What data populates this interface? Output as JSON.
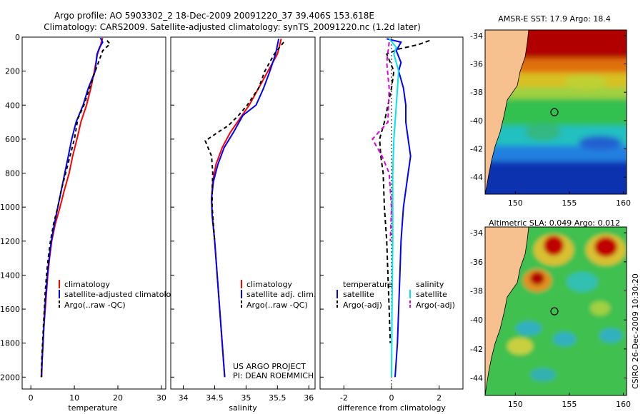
{
  "title": {
    "line1": "Argo profile: AO 5903302_2 18-Dec-2009 20091220_37 39.406S 153.618E",
    "line2": "Climatology: CARS2009. Satellite-adjusted climatology: synTS_20091220.nc (1.2d later)"
  },
  "side_label": "CSIRO 26-Dec-2009 10:30:20",
  "project": {
    "line1": "US ARGO PROJECT",
    "line2": "PI: DEAN ROEMMICH"
  },
  "colors": {
    "climatology": "#ff0000",
    "satellite": "#0000ff",
    "argo": "#000000",
    "satellite_salinity": "#00e5ee",
    "argo_salinity": "#e000e0",
    "land": "#f7c08f"
  },
  "chart_data": [
    {
      "type": "line",
      "id": "temperature",
      "xlabel": "temperature",
      "ylabel": "",
      "xlim": [
        -2,
        31
      ],
      "ylim": [
        2070,
        0
      ],
      "xticks": [
        0,
        10,
        20,
        30
      ],
      "yticks": [
        0,
        200,
        400,
        600,
        800,
        1000,
        1200,
        1400,
        1600,
        1800,
        2000
      ],
      "legend": [
        "climatology",
        "satellite-adjusted climatology",
        "Argo(..raw -QC)"
      ],
      "series": [
        {
          "name": "climatology",
          "color": "#ff0000",
          "dash": "",
          "points": [
            [
              16.5,
              5
            ],
            [
              16.0,
              50
            ],
            [
              15.3,
              100
            ],
            [
              14.6,
              200
            ],
            [
              13.8,
              300
            ],
            [
              12.8,
              400
            ],
            [
              11.5,
              500
            ],
            [
              10.6,
              600
            ],
            [
              9.6,
              700
            ],
            [
              8.8,
              800
            ],
            [
              7.7,
              900
            ],
            [
              6.7,
              1000
            ],
            [
              5.6,
              1100
            ],
            [
              4.8,
              1200
            ],
            [
              4.3,
              1300
            ],
            [
              3.9,
              1400
            ],
            [
              3.6,
              1500
            ],
            [
              3.3,
              1600
            ],
            [
              3.0,
              1700
            ],
            [
              2.8,
              1800
            ],
            [
              2.6,
              1900
            ],
            [
              2.5,
              2000
            ]
          ]
        },
        {
          "name": "satellite-adjusted climatology",
          "color": "#0000ff",
          "dash": "",
          "points": [
            [
              16.0,
              5
            ],
            [
              16.5,
              30
            ],
            [
              15.8,
              60
            ],
            [
              15.2,
              100
            ],
            [
              14.8,
              200
            ],
            [
              13.2,
              300
            ],
            [
              12.0,
              400
            ],
            [
              10.4,
              500
            ],
            [
              9.4,
              600
            ],
            [
              8.6,
              700
            ],
            [
              7.8,
              800
            ],
            [
              7.0,
              900
            ],
            [
              6.2,
              1000
            ],
            [
              5.4,
              1100
            ],
            [
              4.7,
              1200
            ],
            [
              4.2,
              1300
            ],
            [
              3.8,
              1400
            ],
            [
              3.5,
              1500
            ],
            [
              3.2,
              1600
            ],
            [
              3.0,
              1700
            ],
            [
              2.8,
              1800
            ],
            [
              2.6,
              1900
            ],
            [
              2.4,
              2000
            ]
          ]
        },
        {
          "name": "Argo(..raw -QC)",
          "color": "#000000",
          "dash": "5,4",
          "points": [
            [
              17.5,
              20
            ],
            [
              18.2,
              40
            ],
            [
              16.5,
              80
            ],
            [
              15.8,
              130
            ],
            [
              14.8,
              200
            ],
            [
              13.5,
              300
            ],
            [
              12.2,
              400
            ],
            [
              10.8,
              480
            ],
            [
              10.0,
              600
            ],
            [
              9.0,
              700
            ],
            [
              8.0,
              800
            ],
            [
              7.0,
              900
            ],
            [
              6.2,
              1000
            ],
            [
              5.2,
              1100
            ],
            [
              4.5,
              1200
            ],
            [
              4.0,
              1300
            ],
            [
              3.6,
              1400
            ],
            [
              3.3,
              1500
            ],
            [
              3.1,
              1600
            ],
            [
              2.9,
              1700
            ],
            [
              2.7,
              1800
            ],
            [
              2.5,
              1900
            ],
            [
              2.4,
              2000
            ]
          ]
        }
      ]
    },
    {
      "type": "line",
      "id": "salinity",
      "xlabel": "salinity",
      "ylabel": "",
      "xlim": [
        33.8,
        36.1
      ],
      "ylim": [
        2070,
        0
      ],
      "xticks": [
        34,
        34.5,
        35,
        35.5,
        36
      ],
      "yticks": [
        0,
        200,
        400,
        600,
        800,
        1000,
        1200,
        1400,
        1600,
        1800,
        2000
      ],
      "legend": [
        "climatology",
        "satellite adj. clim.",
        "Argo(..raw -QC)"
      ],
      "series": [
        {
          "name": "climatology",
          "color": "#ff0000",
          "dash": "",
          "points": [
            [
              35.56,
              10
            ],
            [
              35.5,
              100
            ],
            [
              35.35,
              200
            ],
            [
              35.2,
              300
            ],
            [
              35.05,
              400
            ],
            [
              34.9,
              480
            ],
            [
              34.75,
              560
            ],
            [
              34.62,
              650
            ],
            [
              34.52,
              750
            ],
            [
              34.47,
              850
            ],
            [
              34.45,
              950
            ],
            [
              34.46,
              1050
            ],
            [
              34.5,
              1200
            ],
            [
              34.54,
              1400
            ],
            [
              34.58,
              1600
            ],
            [
              34.62,
              1800
            ],
            [
              34.66,
              2000
            ]
          ]
        },
        {
          "name": "satellite adj. clim.",
          "color": "#0000ff",
          "dash": "",
          "points": [
            [
              35.52,
              10
            ],
            [
              35.47,
              100
            ],
            [
              35.38,
              200
            ],
            [
              35.28,
              300
            ],
            [
              35.16,
              400
            ],
            [
              34.95,
              460
            ],
            [
              34.8,
              560
            ],
            [
              34.65,
              650
            ],
            [
              34.55,
              750
            ],
            [
              34.48,
              850
            ],
            [
              34.45,
              950
            ],
            [
              34.46,
              1050
            ],
            [
              34.5,
              1200
            ],
            [
              34.54,
              1400
            ],
            [
              34.58,
              1600
            ],
            [
              34.62,
              1800
            ],
            [
              34.66,
              2000
            ]
          ]
        },
        {
          "name": "Argo(..raw -QC)",
          "color": "#000000",
          "dash": "5,4",
          "points": [
            [
              35.6,
              30
            ],
            [
              35.45,
              100
            ],
            [
              35.3,
              200
            ],
            [
              35.2,
              300
            ],
            [
              35.02,
              400
            ],
            [
              34.88,
              460
            ],
            [
              34.72,
              520
            ],
            [
              34.55,
              560
            ],
            [
              34.35,
              610
            ],
            [
              34.45,
              700
            ],
            [
              34.47,
              800
            ],
            [
              34.46,
              900
            ],
            [
              34.46,
              1000
            ],
            [
              34.48,
              1100
            ],
            [
              34.5,
              1200
            ]
          ]
        }
      ]
    },
    {
      "type": "line",
      "id": "difference",
      "xlabel": "difference from climatology",
      "ylabel": "",
      "xlim": [
        -3,
        3
      ],
      "ylim": [
        2070,
        0
      ],
      "xticks": [
        -2,
        0,
        2
      ],
      "yticks": [
        0,
        200,
        400,
        600,
        800,
        1000,
        1200,
        1400,
        1600,
        1800,
        2000
      ],
      "legend_temperature_title": "temperature",
      "legend_salinity_title": "salinity",
      "legend_temperature": [
        "satellite",
        "Argo(-adj)"
      ],
      "legend_salinity": [
        "satellite",
        "Argo(-adj)"
      ],
      "series": [
        {
          "name": "temperature satellite",
          "color": "#0000ff",
          "dash": "",
          "points": [
            [
              -0.2,
              10
            ],
            [
              0.4,
              30
            ],
            [
              0.2,
              80
            ],
            [
              0.4,
              150
            ],
            [
              0.3,
              200
            ],
            [
              0.5,
              300
            ],
            [
              0.6,
              400
            ],
            [
              0.6,
              500
            ],
            [
              0.7,
              600
            ],
            [
              0.8,
              700
            ],
            [
              0.7,
              800
            ],
            [
              0.6,
              900
            ],
            [
              0.5,
              1000
            ],
            [
              0.45,
              1100
            ],
            [
              0.4,
              1200
            ],
            [
              0.35,
              1400
            ],
            [
              0.3,
              1600
            ],
            [
              0.25,
              1800
            ],
            [
              0.15,
              2000
            ]
          ]
        },
        {
          "name": "temperature Argo(-adj)",
          "color": "#000000",
          "dash": "6,4",
          "points": [
            [
              1.6,
              20
            ],
            [
              1.1,
              45
            ],
            [
              0.3,
              70
            ],
            [
              -0.2,
              100
            ],
            [
              0.1,
              200
            ],
            [
              0.0,
              300
            ],
            [
              -0.3,
              500
            ],
            [
              -0.5,
              600
            ],
            [
              -0.45,
              700
            ],
            [
              -0.35,
              800
            ],
            [
              -0.3,
              1000
            ],
            [
              -0.2,
              1200
            ],
            [
              -0.15,
              1400
            ],
            [
              -0.1,
              1600
            ],
            [
              -0.05,
              1800
            ]
          ]
        },
        {
          "name": "salinity satellite",
          "color": "#00e5ee",
          "dash": "",
          "points": [
            [
              -0.1,
              10
            ],
            [
              0.2,
              60
            ],
            [
              0.1,
              100
            ],
            [
              0.3,
              200
            ],
            [
              0.2,
              400
            ],
            [
              0.1,
              600
            ],
            [
              0.05,
              800
            ],
            [
              0.05,
              1200
            ],
            [
              0.02,
              1600
            ],
            [
              0.0,
              2000
            ]
          ]
        },
        {
          "name": "salinity Argo(-adj)",
          "color": "#e000e0",
          "dash": "6,4",
          "points": [
            [
              -0.1,
              30
            ],
            [
              -0.2,
              150
            ],
            [
              -0.1,
              300
            ],
            [
              -0.15,
              500
            ],
            [
              -0.8,
              600
            ],
            [
              -0.4,
              700
            ],
            [
              -0.1,
              800
            ],
            [
              0.0,
              1000
            ],
            [
              -0.05,
              1200
            ]
          ]
        }
      ]
    },
    {
      "type": "heatmap",
      "id": "sst_map",
      "title": "AMSR-E SST: 17.9 Argo: 18.4",
      "xticks": [
        150,
        155,
        160
      ],
      "yticks": [
        -34,
        -36,
        -38,
        -40,
        -42,
        -44
      ],
      "xlim": [
        147.2,
        160.3
      ],
      "ylim": [
        -45.2,
        -33.6
      ],
      "profile_marker": [
        153.618,
        -39.406
      ]
    },
    {
      "type": "heatmap",
      "id": "sla_map",
      "title": "Altimetric SLA: 0.049 Argo: 0.012",
      "xticks": [
        150,
        155,
        160
      ],
      "yticks": [
        -34,
        -36,
        -38,
        -40,
        -42,
        -44
      ],
      "xlim": [
        147.2,
        160.3
      ],
      "ylim": [
        -45.2,
        -33.6
      ],
      "profile_marker": [
        153.618,
        -39.406
      ]
    }
  ]
}
